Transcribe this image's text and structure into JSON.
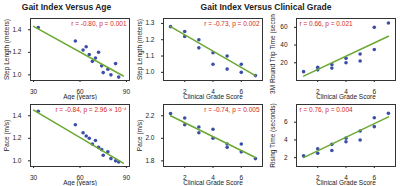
{
  "chart_data": [
    {
      "type": "scatter",
      "title": "Gait Index Versus Age",
      "x_label": "Age (years)",
      "y_label": "Step Length (meters)",
      "annotation": "r = -0.80, p = 0.001",
      "xlim": [
        28,
        92
      ],
      "xticks": [
        30,
        60,
        90
      ],
      "ylim": [
        0.95,
        1.5
      ],
      "yticks": [
        {
          "value": 1.0,
          "label": "1.0"
        },
        1.2,
        1.4
      ],
      "series": [
        {
          "type": "scatter",
          "color": "#3b4fa8",
          "x": [
            33,
            57,
            62,
            64,
            66,
            68,
            70,
            72,
            74,
            75,
            78,
            80,
            83,
            85
          ],
          "values": [
            1.42,
            1.3,
            1.22,
            1.25,
            1.18,
            1.12,
            1.15,
            1.2,
            1.08,
            1.02,
            1.05,
            1.0,
            1.1,
            0.98
          ]
        },
        {
          "type": "line",
          "color": "#6aa832",
          "x": [
            30,
            88
          ],
          "values": [
            1.43,
            0.99
          ]
        }
      ]
    },
    {
      "type": "scatter",
      "title": "Gait Index Versus Clinical Grade",
      "x_label": "Clinical Grade Score",
      "y_label": "Step Length (meters)",
      "annotation": "r = -0.73, p = 0.002",
      "xlim": [
        0.5,
        7.5
      ],
      "xticks": [
        2,
        4,
        6
      ],
      "ylim": [
        0.95,
        1.33
      ],
      "yticks": [
        {
          "value": 1.0,
          "label": "1.0"
        },
        1.1,
        1.2,
        1.3
      ],
      "series": [
        {
          "type": "scatter",
          "color": "#3b4fa8",
          "x": [
            1,
            2,
            2,
            3,
            3,
            4,
            4,
            5,
            5,
            6,
            6,
            7
          ],
          "values": [
            1.28,
            1.25,
            1.22,
            1.15,
            1.2,
            1.12,
            1.05,
            1.1,
            1.02,
            1.0,
            1.05,
            0.98
          ]
        },
        {
          "type": "line",
          "color": "#6aa832",
          "x": [
            1,
            7
          ],
          "values": [
            1.28,
            0.98
          ]
        }
      ]
    },
    {
      "type": "scatter",
      "x_label": "Clinical Grade Score",
      "y_label": "3M Round Trip Time (seconds)",
      "annotation": "r = 0.66, p = 0.021",
      "xlim": [
        0.5,
        7.5
      ],
      "xticks": [
        2,
        4,
        6
      ],
      "ylim": [
        0,
        70
      ],
      "yticks": [
        20,
        40,
        60
      ],
      "series": [
        {
          "type": "scatter",
          "color": "#3b4fa8",
          "x": [
            1,
            2,
            2,
            3,
            3,
            4,
            4,
            5,
            5,
            6,
            6,
            7
          ],
          "values": [
            10,
            12,
            15,
            14,
            18,
            20,
            25,
            22,
            30,
            35,
            60,
            65
          ]
        },
        {
          "type": "line",
          "color": "#6aa832",
          "x": [
            1,
            7
          ],
          "values": [
            5,
            50
          ]
        }
      ]
    },
    {
      "type": "scatter",
      "x_label": "Age (years)",
      "y_label": "Pace (m/s)",
      "annotation": "r = -0.84, p = 2.96 × 10⁻⁴",
      "xlim": [
        28,
        92
      ],
      "xticks": [
        30,
        60,
        90
      ],
      "ylim": [
        0.95,
        1.5
      ],
      "yticks": [
        {
          "value": 1.0,
          "label": "1.0"
        },
        1.2,
        1.4
      ],
      "series": [
        {
          "type": "scatter",
          "color": "#3b4fa8",
          "x": [
            33,
            57,
            62,
            64,
            66,
            68,
            70,
            72,
            74,
            75,
            78,
            80,
            83,
            85
          ],
          "values": [
            1.44,
            1.32,
            1.25,
            1.22,
            1.2,
            1.15,
            1.18,
            1.12,
            1.1,
            1.05,
            1.08,
            1.02,
            1.0,
            0.99
          ]
        },
        {
          "type": "line",
          "color": "#6aa832",
          "x": [
            30,
            88
          ],
          "values": [
            1.45,
            0.98
          ]
        }
      ]
    },
    {
      "type": "scatter",
      "x_label": "Clinical Grade Score",
      "y_label": "Pace (m/s)",
      "annotation": "r = -0.74, p = 0.005",
      "xlim": [
        0.5,
        7.5
      ],
      "xticks": [
        2,
        4,
        6
      ],
      "ylim": [
        1.75,
        2.3
      ],
      "yticks": [
        1.8,
        {
          "value": 2.0,
          "label": "2.0"
        },
        2.2
      ],
      "series": [
        {
          "type": "scatter",
          "color": "#3b4fa8",
          "x": [
            1,
            2,
            2,
            3,
            3,
            4,
            4,
            5,
            5,
            6,
            6,
            7
          ],
          "values": [
            2.22,
            2.18,
            2.12,
            2.1,
            2.05,
            2.0,
            2.08,
            1.95,
            1.92,
            1.88,
            1.95,
            1.82
          ]
        },
        {
          "type": "line",
          "color": "#6aa832",
          "x": [
            1,
            7
          ],
          "values": [
            2.2,
            1.83
          ]
        }
      ]
    },
    {
      "type": "scatter",
      "x_label": "Clinical Grade Score",
      "y_label": "Rising Time (seconds)",
      "annotation": "r = 0.76, p = 0.004",
      "xlim": [
        0.5,
        7.5
      ],
      "xticks": [
        2,
        4,
        6
      ],
      "ylim": [
        1,
        8
      ],
      "yticks": [
        2,
        4,
        6
      ],
      "series": [
        {
          "type": "scatter",
          "color": "#3b4fa8",
          "x": [
            1,
            2,
            2,
            3,
            3,
            4,
            4,
            5,
            5,
            6,
            6,
            7
          ],
          "values": [
            2.2,
            2.5,
            3.0,
            2.8,
            3.5,
            3.8,
            4.2,
            4.0,
            5.0,
            5.5,
            6.5,
            7.0
          ]
        },
        {
          "type": "line",
          "color": "#6aa832",
          "x": [
            1,
            7
          ],
          "values": [
            2.0,
            6.6
          ]
        }
      ]
    }
  ]
}
